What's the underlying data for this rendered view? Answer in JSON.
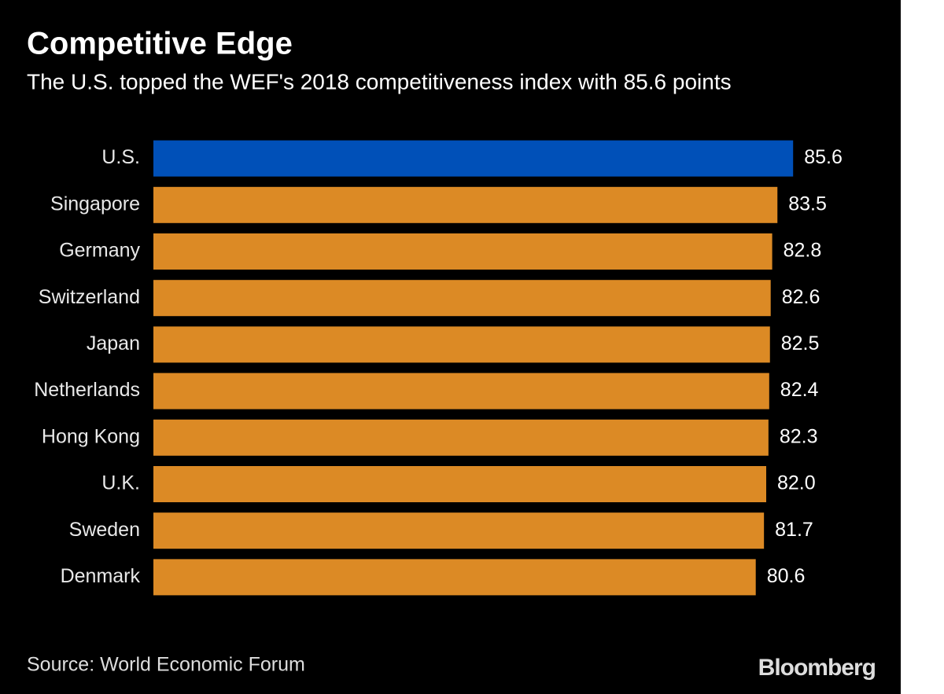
{
  "chart_data": {
    "type": "bar",
    "orientation": "horizontal",
    "title": "Competitive Edge",
    "subtitle": "The U.S. topped the WEF's 2018 competitiveness index with 85.6 points",
    "categories": [
      "U.S.",
      "Singapore",
      "Germany",
      "Switzerland",
      "Japan",
      "Netherlands",
      "Hong Kong",
      "U.K.",
      "Sweden",
      "Denmark"
    ],
    "values": [
      85.6,
      83.5,
      82.8,
      82.6,
      82.5,
      82.4,
      82.3,
      82.0,
      81.7,
      80.6
    ],
    "value_labels": [
      "85.6",
      "83.5",
      "82.8",
      "82.6",
      "82.5",
      "82.4",
      "82.3",
      "82.0",
      "81.7",
      "80.6"
    ],
    "colors": [
      "#0050b8",
      "#dc8a25",
      "#dc8a25",
      "#dc8a25",
      "#dc8a25",
      "#dc8a25",
      "#dc8a25",
      "#dc8a25",
      "#dc8a25",
      "#dc8a25"
    ],
    "xlim": [
      0,
      90
    ],
    "source": "Source: World Economic Forum",
    "logo": "Bloomberg"
  }
}
